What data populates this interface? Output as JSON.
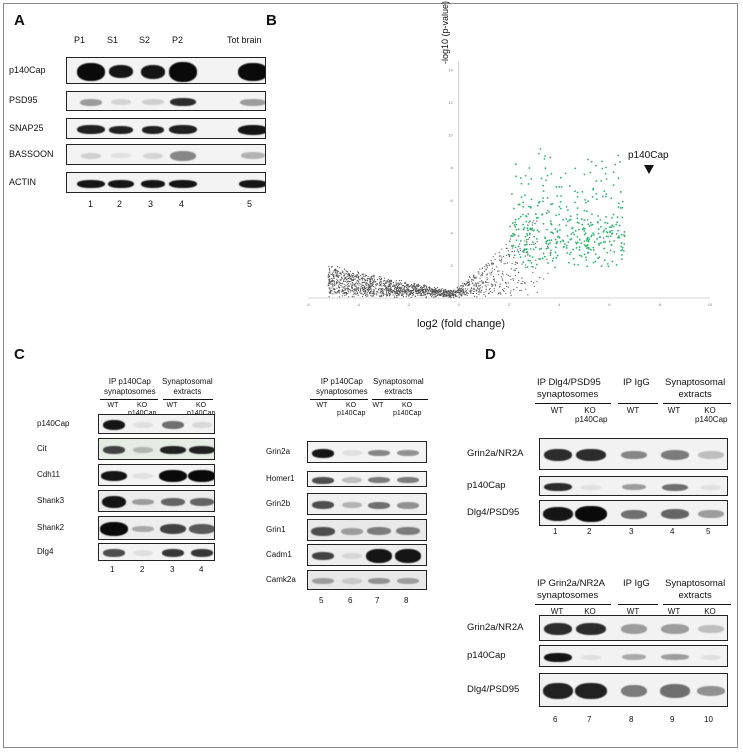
{
  "panel_labels": {
    "a": "A",
    "b": "B",
    "c": "C",
    "d": "D"
  },
  "panel_a": {
    "columns": [
      "P1",
      "S1",
      "S2",
      "P2",
      "Tot brain"
    ],
    "rows": [
      "p140Cap",
      "PSD95",
      "SNAP25",
      "BASSOON",
      "ACTIN"
    ],
    "lanes": [
      "1",
      "2",
      "3",
      "4",
      "5"
    ]
  },
  "panel_b": {
    "ylabel": "-log10 (p-value)",
    "xlabel": "log2 (fold change)",
    "annotation": "p140Cap",
    "y_ticks": [
      "14",
      "12",
      "10",
      "8",
      "6",
      "4",
      "2"
    ],
    "x_ticks": [
      "-6",
      "-4",
      "-2",
      "0",
      "2",
      "4",
      "6",
      "8",
      "10"
    ],
    "highlight_color": "#2db36b",
    "point_color": "#444444"
  },
  "panel_c": {
    "left": {
      "group1": "IP p140Cap\nsynaptosomes",
      "group2": "Synaptosomal\nextracts",
      "subs": [
        "WT",
        "KO\np140Cap",
        "WT",
        "KO\np140Cap"
      ],
      "rows": [
        "p140Cap",
        "Cit",
        "Cdh11",
        "Shank3",
        "Shank2",
        "Dlg4"
      ],
      "lanes": [
        "1",
        "2",
        "3",
        "4"
      ]
    },
    "right": {
      "group1": "IP p140Cap\nsynaptosomes",
      "group2": "Synaptosomal\nextracts",
      "subs": [
        "WT",
        "KO\np140Cap",
        "WT",
        "KO\np140Cap"
      ],
      "rows": [
        "Grin2a",
        "Homer1",
        "Grin2b",
        "Grin1",
        "Cadm1",
        "Camk2a"
      ],
      "lanes": [
        "5",
        "6",
        "7",
        "8"
      ]
    }
  },
  "panel_d": {
    "top": {
      "group1": "IP Dlg4/PSD95\nsynaptosomes",
      "group2": "IP IgG",
      "group3": "Synaptosomal\nextracts",
      "subs": [
        "WT",
        "KO\np140Cap",
        "WT",
        "WT",
        "KO\np140Cap"
      ],
      "rows": [
        "Grin2a/NR2A",
        "p140Cap",
        "Dlg4/PSD95"
      ],
      "lanes": [
        "1",
        "2",
        "3",
        "4",
        "5"
      ]
    },
    "bottom": {
      "group1": "IP Grin2a/NR2A\nsynaptosomes",
      "group2": "IP IgG",
      "group3": "Synaptosomal\nextracts",
      "subs": [
        "WT",
        "KO\np140Cap",
        "WT",
        "WT",
        "KO\np140Cap"
      ],
      "rows": [
        "Grin2a/NR2A",
        "p140Cap",
        "Dlg4/PSD95"
      ],
      "lanes": [
        "6",
        "7",
        "8",
        "9",
        "10"
      ]
    }
  }
}
